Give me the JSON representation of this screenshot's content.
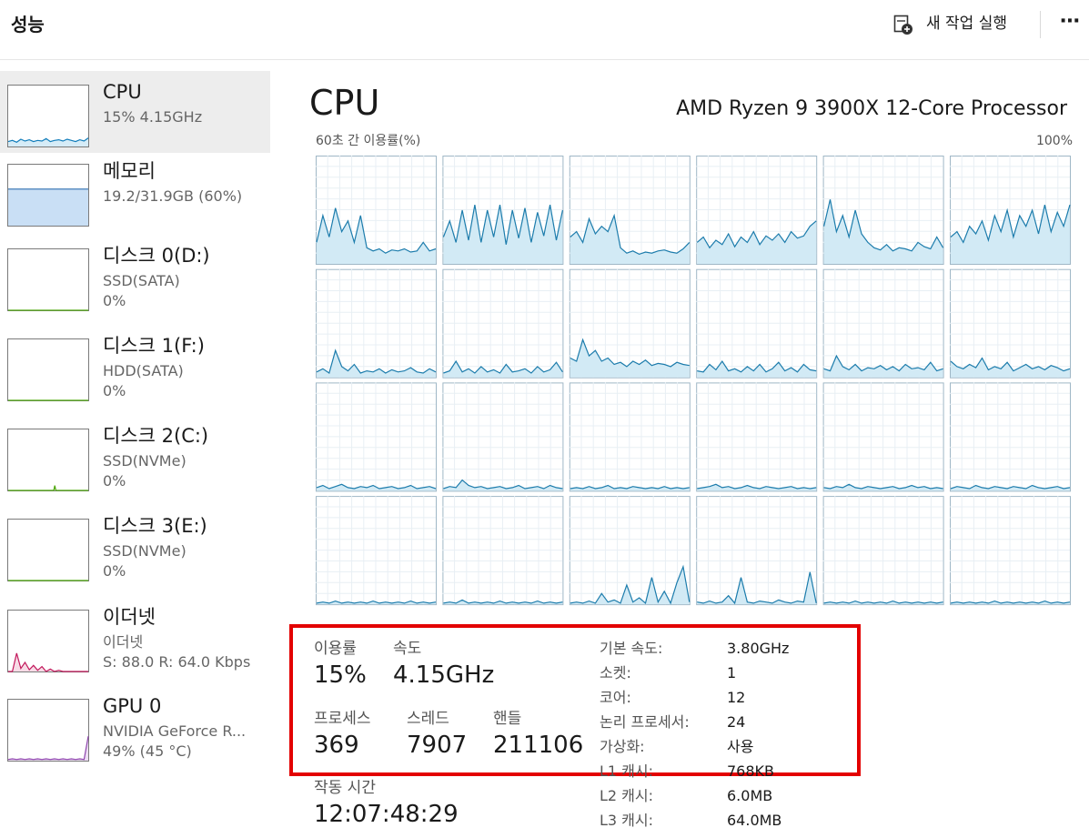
{
  "header": {
    "title": "성능",
    "new_task": "새 작업 실행",
    "more": "⋯"
  },
  "sidebar": [
    {
      "name": "CPU",
      "lines": [
        "15% 4.15GHz"
      ],
      "color": "#117dbb",
      "fill": "#d6ecf7",
      "graph": [
        8,
        10,
        7,
        12,
        9,
        11,
        8,
        10,
        9,
        13,
        8,
        10,
        11,
        9,
        12,
        10,
        8,
        11,
        9,
        14
      ]
    },
    {
      "name": "메모리",
      "lines": [
        "19.2/31.9GB (60%)"
      ],
      "color": "#2f6fb0",
      "fill": "#c9dff5",
      "graph": [
        60,
        60
      ]
    },
    {
      "name": "디스크 0(D:)",
      "lines": [
        "SSD(SATA)",
        "0%"
      ],
      "color": "#4da60c",
      "fill": "#e3f2d6",
      "graph": [
        0,
        0
      ]
    },
    {
      "name": "디스크 1(F:)",
      "lines": [
        "HDD(SATA)",
        "0%"
      ],
      "color": "#4da60c",
      "fill": "#e3f2d6",
      "graph": [
        0,
        0
      ]
    },
    {
      "name": "디스크 2(C:)",
      "lines": [
        "SSD(NVMe)",
        "0%"
      ],
      "color": "#4da60c",
      "fill": "#e3f2d6",
      "graph": [
        0,
        0,
        0,
        0,
        0,
        0,
        0,
        0,
        0,
        0,
        0,
        0,
        0,
        0,
        0,
        0,
        0,
        0,
        0,
        0,
        0,
        0,
        0,
        0,
        0,
        0,
        0,
        0,
        0,
        0,
        0,
        0,
        0,
        0,
        0,
        0,
        0,
        0,
        0,
        0,
        0,
        0,
        0,
        0,
        0,
        0,
        8,
        0,
        0,
        0,
        0,
        0,
        0,
        0,
        0,
        0,
        0,
        0,
        0,
        0,
        0,
        0,
        0,
        0,
        0,
        0,
        0,
        0,
        0,
        0,
        0,
        0,
        0,
        0,
        0,
        0,
        0,
        0,
        0,
        0
      ]
    },
    {
      "name": "디스크 3(E:)",
      "lines": [
        "SSD(NVMe)",
        "0%"
      ],
      "color": "#4da60c",
      "fill": "#e3f2d6",
      "graph": [
        0,
        0
      ]
    },
    {
      "name": "이더넷",
      "lines": [
        "이더넷",
        "S: 88.0  R: 64.0 Kbps"
      ],
      "color": "#c2185b",
      "fill": "#f7dbe6",
      "graph": [
        0,
        0,
        30,
        5,
        15,
        3,
        10,
        2,
        8,
        0,
        4,
        0,
        2,
        0,
        0,
        0,
        0,
        0,
        0,
        0
      ]
    },
    {
      "name": "GPU 0",
      "lines": [
        "NVIDIA GeForce R...",
        "49% (45 °C)"
      ],
      "color": "#8e44ad",
      "fill": "#ecdcf3",
      "graph": [
        2,
        3,
        2,
        3,
        2,
        3,
        2,
        3,
        2,
        3,
        2,
        3,
        2,
        3,
        2,
        3,
        2,
        3,
        2,
        40
      ]
    }
  ],
  "main": {
    "title": "CPU",
    "processor": "AMD Ryzen 9 3900X 12-Core Processor",
    "graph_label": "60초 간 이용률(%)",
    "graph_max": "100%",
    "graph_ylim": [
      0,
      100
    ],
    "color": "#1c7cac",
    "fill": "#d2eaf5",
    "cores": [
      [
        20,
        45,
        25,
        52,
        30,
        40,
        20,
        45,
        15,
        12,
        14,
        10,
        13,
        12,
        14,
        11,
        12,
        20,
        12,
        14
      ],
      [
        25,
        40,
        20,
        50,
        22,
        55,
        20,
        50,
        25,
        55,
        18,
        50,
        24,
        52,
        20,
        48,
        26,
        55,
        22,
        50
      ],
      [
        25,
        30,
        20,
        42,
        28,
        35,
        30,
        45,
        15,
        10,
        12,
        9,
        11,
        10,
        12,
        13,
        11,
        10,
        14,
        20
      ],
      [
        20,
        25,
        15,
        22,
        18,
        28,
        16,
        25,
        20,
        30,
        18,
        26,
        22,
        28,
        20,
        30,
        24,
        26,
        35,
        40
      ],
      [
        35,
        60,
        30,
        45,
        25,
        50,
        28,
        20,
        15,
        13,
        18,
        12,
        15,
        14,
        12,
        20,
        16,
        14,
        25,
        15
      ],
      [
        25,
        30,
        20,
        35,
        28,
        40,
        22,
        45,
        30,
        50,
        25,
        45,
        35,
        50,
        28,
        55,
        30,
        48,
        35,
        55
      ],
      [
        5,
        8,
        4,
        25,
        10,
        6,
        12,
        4,
        6,
        5,
        8,
        4,
        7,
        5,
        6,
        9,
        5,
        4,
        8,
        5
      ],
      [
        4,
        6,
        15,
        5,
        8,
        4,
        10,
        5,
        7,
        4,
        12,
        5,
        6,
        8,
        4,
        10,
        5,
        7,
        14,
        5
      ],
      [
        18,
        15,
        35,
        20,
        25,
        15,
        18,
        12,
        14,
        10,
        15,
        12,
        16,
        11,
        13,
        12,
        10,
        14,
        12,
        11
      ],
      [
        6,
        5,
        12,
        7,
        15,
        6,
        8,
        5,
        10,
        6,
        12,
        5,
        8,
        14,
        6,
        9,
        5,
        12,
        7,
        6
      ],
      [
        8,
        6,
        20,
        10,
        7,
        12,
        6,
        9,
        8,
        11,
        7,
        10,
        6,
        12,
        8,
        9,
        7,
        14,
        6,
        8
      ],
      [
        15,
        10,
        8,
        12,
        9,
        18,
        7,
        10,
        8,
        14,
        6,
        9,
        12,
        8,
        10,
        7,
        11,
        9,
        6,
        8
      ],
      [
        3,
        5,
        2,
        4,
        6,
        3,
        2,
        4,
        3,
        5,
        2,
        3,
        4,
        2,
        3,
        5,
        2,
        3,
        4,
        2
      ],
      [
        2,
        4,
        3,
        10,
        5,
        3,
        4,
        2,
        3,
        4,
        2,
        3,
        5,
        2,
        3,
        4,
        2,
        5,
        3,
        2
      ],
      [
        2,
        3,
        2,
        4,
        2,
        3,
        5,
        2,
        3,
        2,
        4,
        3,
        2,
        3,
        2,
        4,
        2,
        3,
        2,
        3
      ],
      [
        2,
        3,
        4,
        6,
        3,
        4,
        2,
        3,
        5,
        3,
        2,
        4,
        3,
        2,
        3,
        4,
        2,
        3,
        2,
        3
      ],
      [
        3,
        2,
        4,
        3,
        6,
        3,
        2,
        4,
        3,
        2,
        3,
        4,
        2,
        3,
        5,
        3,
        4,
        2,
        3,
        2
      ],
      [
        2,
        4,
        3,
        2,
        5,
        3,
        2,
        4,
        3,
        2,
        4,
        3,
        2,
        5,
        3,
        2,
        3,
        4,
        2,
        3
      ],
      [
        1,
        2,
        1,
        3,
        1,
        2,
        1,
        2,
        1,
        3,
        1,
        2,
        1,
        2,
        1,
        3,
        1,
        2,
        1,
        2
      ],
      [
        1,
        2,
        1,
        4,
        1,
        2,
        1,
        2,
        1,
        3,
        1,
        2,
        1,
        2,
        1,
        3,
        1,
        2,
        1,
        2
      ],
      [
        1,
        2,
        1,
        3,
        1,
        10,
        2,
        4,
        1,
        18,
        2,
        6,
        1,
        25,
        2,
        12,
        1,
        20,
        35,
        2
      ],
      [
        2,
        1,
        3,
        1,
        2,
        8,
        1,
        25,
        2,
        1,
        3,
        2,
        1,
        4,
        2,
        1,
        3,
        2,
        30,
        1
      ],
      [
        1,
        2,
        1,
        2,
        1,
        3,
        1,
        2,
        1,
        2,
        1,
        3,
        1,
        2,
        1,
        2,
        1,
        2,
        1,
        2
      ],
      [
        1,
        2,
        1,
        2,
        1,
        2,
        1,
        3,
        1,
        2,
        1,
        2,
        1,
        2,
        1,
        3,
        1,
        2,
        1,
        2
      ]
    ]
  },
  "stats": {
    "utilization": {
      "label": "이용률",
      "value": "15%"
    },
    "speed": {
      "label": "속도",
      "value": "4.15GHz"
    },
    "processes": {
      "label": "프로세스",
      "value": "369"
    },
    "threads": {
      "label": "스레드",
      "value": "7907"
    },
    "handles": {
      "label": "핸들",
      "value": "211106"
    },
    "uptime": {
      "label": "작동 시간",
      "value": "12:07:48:29"
    },
    "details": [
      [
        "기본 속도:",
        "3.80GHz"
      ],
      [
        "소켓:",
        "1"
      ],
      [
        "코어:",
        "12"
      ],
      [
        "논리 프로세서:",
        "24"
      ],
      [
        "가상화:",
        "사용"
      ],
      [
        "L1 캐시:",
        "768KB"
      ],
      [
        "L2 캐시:",
        "6.0MB"
      ],
      [
        "L3 캐시:",
        "64.0MB"
      ]
    ]
  }
}
